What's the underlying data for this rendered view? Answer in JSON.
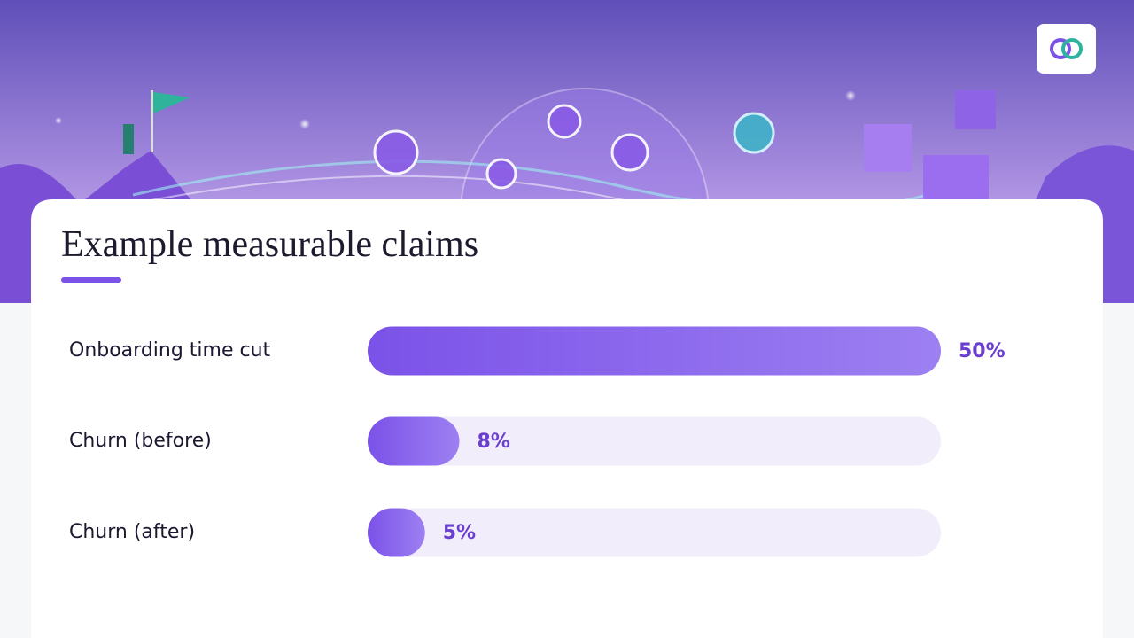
{
  "chart_data": {
    "type": "bar",
    "orientation": "horizontal",
    "title": "Example measurable claims",
    "categories": [
      "Onboarding time cut",
      "Churn (before)",
      "Churn (after)"
    ],
    "values": [
      50,
      8,
      5
    ],
    "value_labels": [
      "50%",
      "8%",
      "5%"
    ],
    "xlim": [
      0,
      50
    ],
    "color": "#7b52e8"
  }
}
